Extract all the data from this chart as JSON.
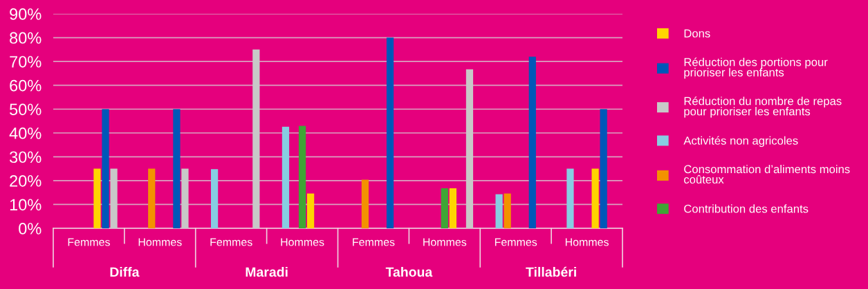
{
  "chart_data": {
    "type": "bar",
    "categories": [
      "Femmes",
      "Hommes",
      "Femmes",
      "Hommes",
      "Femmes",
      "Hommes",
      "Femmes",
      "Hommes"
    ],
    "annotations": [
      "Diffa",
      "Maradi",
      "Tahoua",
      "Tillabéri"
    ],
    "series": [
      {
        "name": "Dons",
        "color": "#ffd400",
        "values": [
          25,
          null,
          null,
          14.6,
          null,
          16.8,
          null,
          25
        ]
      },
      {
        "name": "Réduction des portions pour\nprioriser les enfants",
        "color": "#0057b8",
        "values": [
          50,
          50,
          null,
          null,
          80,
          null,
          72,
          50
        ]
      },
      {
        "name": "Réduction du nombre de repas\npour prioriser les enfants",
        "color": "#c8c8c8",
        "values": [
          25,
          25,
          75,
          null,
          null,
          66.7,
          null,
          null
        ]
      },
      {
        "name": "Activités non agricoles",
        "color": "#87cde2",
        "values": [
          null,
          null,
          24.8,
          42.6,
          null,
          null,
          14.3,
          25
        ]
      },
      {
        "name": "Consommation d’aliments moins\ncoûteux",
        "color": "#f39200",
        "values": [
          null,
          25,
          null,
          null,
          20.4,
          null,
          14.6,
          null
        ]
      },
      {
        "name": "Contribution des enfants",
        "color": "#3fa535",
        "values": [
          null,
          null,
          null,
          43,
          null,
          16.8,
          null,
          null
        ]
      }
    ],
    "ylim": [
      0,
      90
    ],
    "yticks": [
      {
        "value": 0,
        "label": "0%"
      },
      {
        "value": 10,
        "label": "10%"
      },
      {
        "value": 20,
        "label": "20%"
      },
      {
        "value": 30,
        "label": "30%"
      },
      {
        "value": 40,
        "label": "40%"
      },
      {
        "value": 50,
        "label": "50%"
      },
      {
        "value": 60,
        "label": "60%"
      },
      {
        "value": 70,
        "label": "70%"
      },
      {
        "value": 80,
        "label": "80%"
      },
      {
        "value": 90,
        "label": "90%"
      }
    ],
    "grid": "y",
    "legend": "right"
  }
}
